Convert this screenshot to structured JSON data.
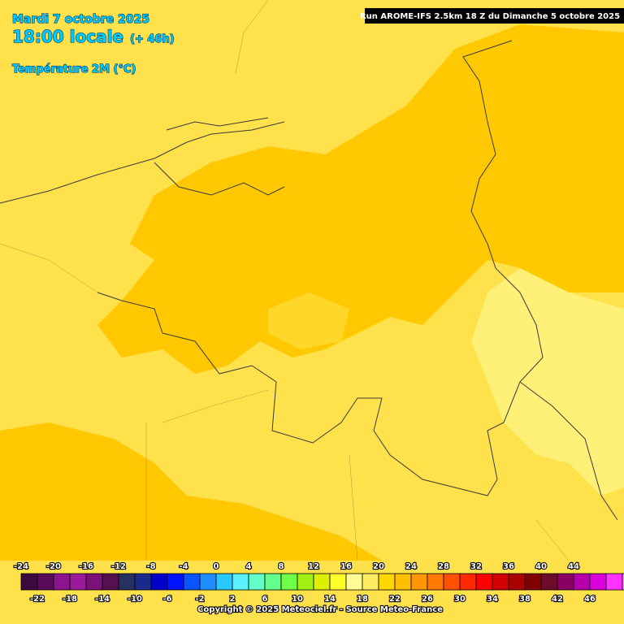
{
  "header": {
    "date": "Mardi 7 octobre 2025",
    "time": "18:00 locale",
    "lead": "(+ 46h)",
    "parameter": "Température 2M (°C)",
    "run": "Run AROME-IFS 2.5km 18 Z du Dimanche 5 octobre 2025"
  },
  "legend": {
    "values": [
      -24,
      -22,
      -20,
      -18,
      -16,
      -14,
      -12,
      -10,
      -8,
      -6,
      -4,
      -2,
      0,
      2,
      4,
      6,
      8,
      10,
      12,
      14,
      16,
      18,
      20,
      22,
      24,
      26,
      28,
      30,
      32,
      34,
      36,
      38,
      40,
      42,
      44,
      46
    ],
    "colors": [
      "#3c0a3c",
      "#5a0a5a",
      "#8c148c",
      "#9a1a9a",
      "#7a127a",
      "#541050",
      "#283060",
      "#1a2a8c",
      "#0000c8",
      "#0014ff",
      "#0a55ff",
      "#1e8cff",
      "#28c8ff",
      "#5af0ff",
      "#64ffc8",
      "#64ff8c",
      "#6eff46",
      "#a0f014",
      "#dcf000",
      "#ffff28",
      "#ffff96",
      "#ffeb64",
      "#ffd700",
      "#ffbe00",
      "#ff9600",
      "#ff7800",
      "#ff5000",
      "#ff2800",
      "#ff0000",
      "#d20000",
      "#aa0000",
      "#820000",
      "#6e0a2a",
      "#8c0064",
      "#b400aa",
      "#dc00dc",
      "#ff32ff",
      "#ff82ff"
    ]
  },
  "footer": {
    "copyright": "Copyright © 2025 Meteociel.fr - Source Meteo-France"
  }
}
